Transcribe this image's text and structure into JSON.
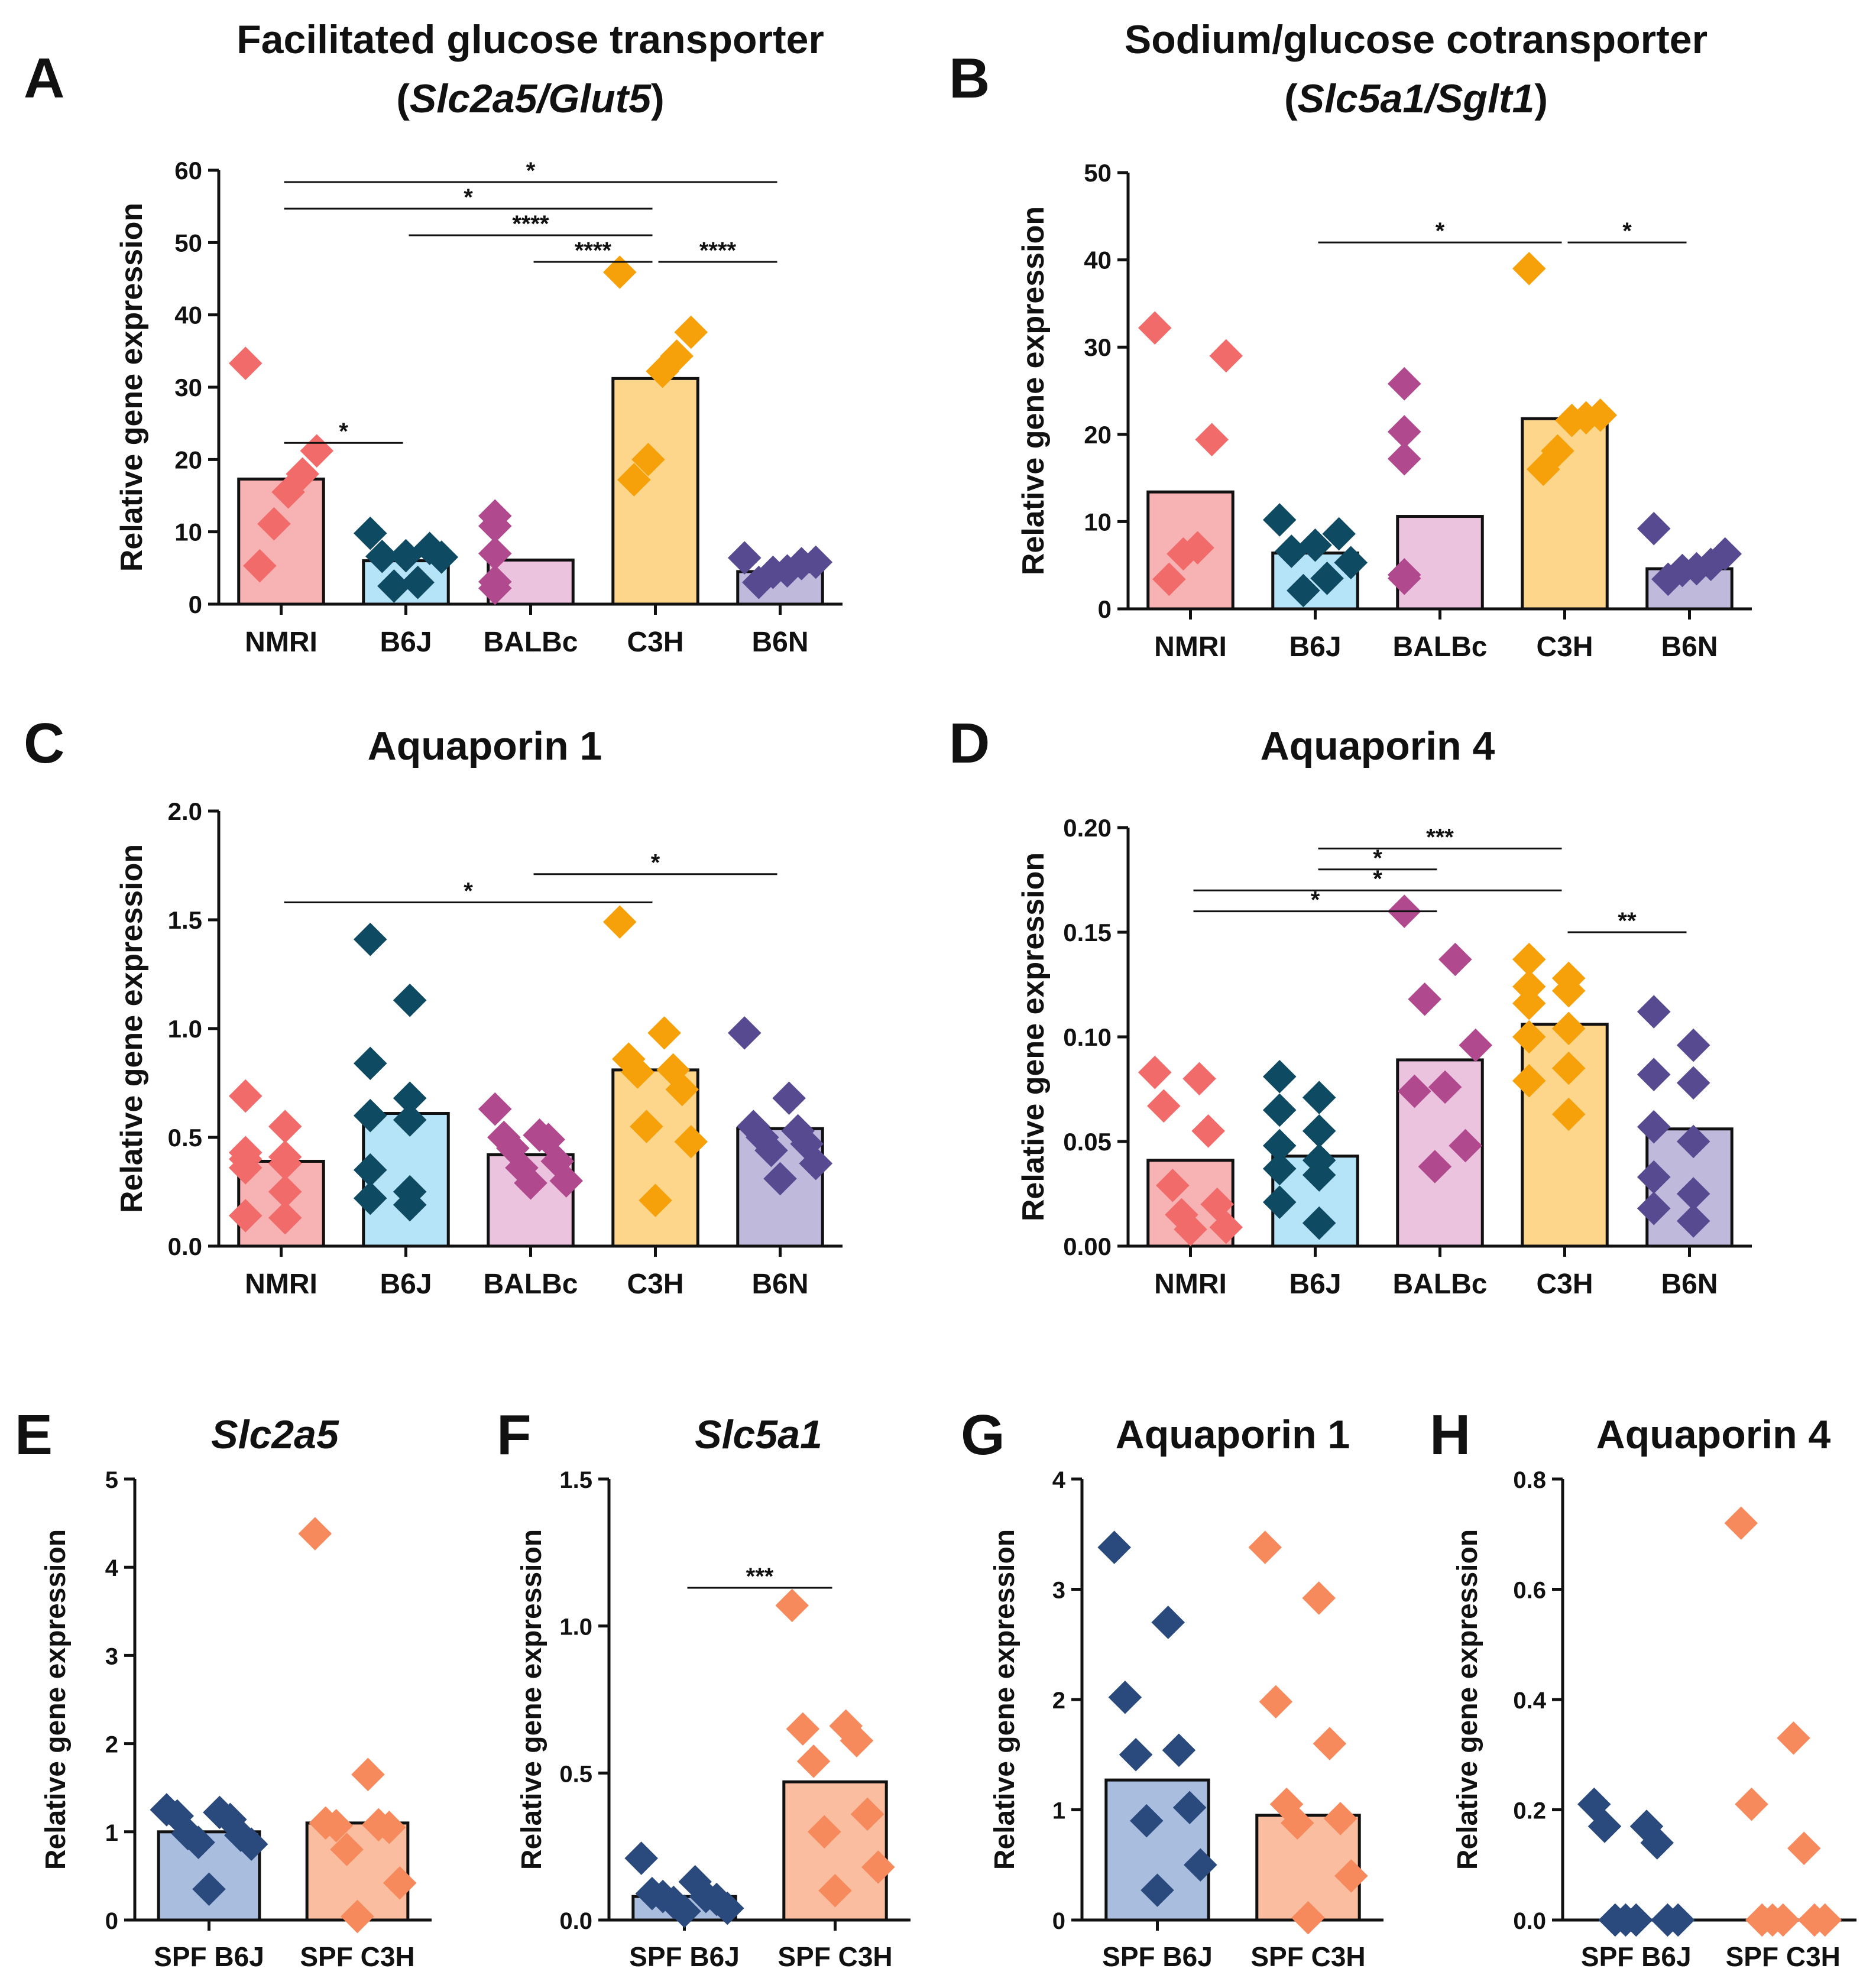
{
  "chart_data": [
    {
      "panel": "A",
      "type": "bar",
      "title": "Facilitated glucose transporter",
      "subtitle": "(Slc2a5/Glut5)",
      "ylabel": "Relative gene expression",
      "ylim": [
        0,
        60
      ],
      "yticks": [
        0,
        10,
        20,
        30,
        40,
        50,
        60
      ],
      "categories": [
        "NMRI",
        "B6J",
        "BALBc",
        "C3H",
        "B6N"
      ],
      "colors": [
        "#f7b3b3",
        "#b5e3f7",
        "#ecc3df",
        "#fdd68b",
        "#bfb9dc"
      ],
      "point_colors": [
        "#f26b6b",
        "#0f4a63",
        "#b0498e",
        "#f7a10a",
        "#584a91"
      ],
      "values": [
        17.3,
        6.0,
        6.1,
        31.2,
        4.5
      ],
      "points": [
        [
          33.3,
          21.2,
          18.0,
          15.5,
          11.1,
          5.3
        ],
        [
          9.8,
          7.7,
          6.7,
          6.6,
          6.5,
          3.0,
          2.5
        ],
        [
          12.2,
          10.8,
          7.0,
          3.1,
          2.2
        ],
        [
          45.9,
          37.6,
          34.3,
          32.2,
          20.0,
          17.2
        ],
        [
          6.4,
          5.8,
          5.6,
          4.6,
          4.4,
          3.0
        ]
      ],
      "significance": [
        {
          "from": 0,
          "to": 4,
          "label": "*"
        },
        {
          "from": 0,
          "to": 3,
          "label": "*"
        },
        {
          "from": 1,
          "to": 3,
          "label": "****"
        },
        {
          "from": 2,
          "to": 3,
          "label": "****"
        },
        {
          "from": 3,
          "to": 4,
          "label": "****"
        },
        {
          "from": 0,
          "to": 1,
          "label": "*"
        }
      ]
    },
    {
      "panel": "B",
      "type": "bar",
      "title": "Sodium/glucose cotransporter",
      "subtitle": "(Slc5a1/Sglt1)",
      "ylabel": "Relative gene expression",
      "ylim": [
        0,
        50
      ],
      "yticks": [
        0,
        10,
        20,
        30,
        40,
        50
      ],
      "categories": [
        "NMRI",
        "B6J",
        "BALBc",
        "C3H",
        "B6N"
      ],
      "colors": [
        "#f7b3b3",
        "#b5e3f7",
        "#ecc3df",
        "#fdd68b",
        "#bfb9dc"
      ],
      "point_colors": [
        "#f26b6b",
        "#0f4a63",
        "#b0498e",
        "#f7a10a",
        "#584a91"
      ],
      "values": [
        13.4,
        6.4,
        10.6,
        21.8,
        4.6
      ],
      "points": [
        [
          32.2,
          29.0,
          19.4,
          7.0,
          6.3,
          3.4
        ],
        [
          10.2,
          8.6,
          7.3,
          6.6,
          5.3,
          3.5,
          2.1
        ],
        [
          25.8,
          20.3,
          17.2,
          3.9,
          3.5
        ],
        [
          39.0,
          22.2,
          21.9,
          21.6,
          18.1,
          16.0
        ],
        [
          9.2,
          6.3,
          5.1,
          4.6,
          4.4,
          3.4
        ]
      ],
      "significance": [
        {
          "from": 1,
          "to": 3,
          "label": "*"
        },
        {
          "from": 3,
          "to": 4,
          "label": "*"
        }
      ]
    },
    {
      "panel": "C",
      "type": "bar",
      "title": "Aquaporin 1",
      "ylabel": "Relative gene expression",
      "ylim": [
        0,
        2.0
      ],
      "yticks": [
        0.0,
        0.5,
        1.0,
        1.5,
        2.0
      ],
      "decimals": 1,
      "categories": [
        "NMRI",
        "B6J",
        "BALBc",
        "C3H",
        "B6N"
      ],
      "colors": [
        "#f7b3b3",
        "#b5e3f7",
        "#ecc3df",
        "#fdd68b",
        "#bfb9dc"
      ],
      "point_colors": [
        "#f26b6b",
        "#0f4a63",
        "#b0498e",
        "#f7a10a",
        "#584a91"
      ],
      "values": [
        0.39,
        0.61,
        0.42,
        0.81,
        0.54
      ],
      "points": [
        [
          0.69,
          0.55,
          0.43,
          0.41,
          0.4,
          0.38,
          0.36,
          0.25,
          0.14,
          0.13
        ],
        [
          1.41,
          1.13,
          0.84,
          0.68,
          0.6,
          0.58,
          0.35,
          0.25,
          0.22,
          0.19
        ],
        [
          0.63,
          0.51,
          0.5,
          0.49,
          0.45,
          0.39,
          0.36,
          0.3,
          0.29
        ],
        [
          1.49,
          0.98,
          0.86,
          0.81,
          0.8,
          0.72,
          0.55,
          0.48,
          0.21
        ],
        [
          0.98,
          0.68,
          0.55,
          0.53,
          0.5,
          0.47,
          0.44,
          0.38,
          0.31
        ]
      ],
      "significance": [
        {
          "from": 0,
          "to": 3,
          "label": "*"
        },
        {
          "from": 2,
          "to": 4,
          "label": "*"
        }
      ]
    },
    {
      "panel": "D",
      "type": "bar",
      "title": "Aquaporin 4",
      "ylabel": "Relative gene expression",
      "ylim": [
        0,
        0.2
      ],
      "yticks": [
        0.0,
        0.05,
        0.1,
        0.15,
        0.2
      ],
      "decimals": 2,
      "categories": [
        "NMRI",
        "B6J",
        "BALBc",
        "C3H",
        "B6N"
      ],
      "colors": [
        "#f7b3b3",
        "#b5e3f7",
        "#ecc3df",
        "#fdd68b",
        "#bfb9dc"
      ],
      "point_colors": [
        "#f26b6b",
        "#0f4a63",
        "#b0498e",
        "#f7a10a",
        "#584a91"
      ],
      "values": [
        0.041,
        0.043,
        0.089,
        0.106,
        0.056
      ],
      "points": [
        [
          0.083,
          0.08,
          0.067,
          0.055,
          0.029,
          0.02,
          0.015,
          0.009,
          0.008
        ],
        [
          0.081,
          0.071,
          0.065,
          0.055,
          0.048,
          0.041,
          0.037,
          0.034,
          0.021,
          0.011
        ],
        [
          0.16,
          0.137,
          0.118,
          0.096,
          0.076,
          0.074,
          0.048,
          0.038
        ],
        [
          0.137,
          0.128,
          0.124,
          0.122,
          0.116,
          0.104,
          0.1,
          0.085,
          0.079,
          0.063
        ],
        [
          0.112,
          0.096,
          0.082,
          0.078,
          0.057,
          0.05,
          0.033,
          0.025,
          0.018,
          0.012
        ]
      ],
      "significance": [
        {
          "from": 1,
          "to": 3,
          "label": "***"
        },
        {
          "from": 1,
          "to": 2,
          "label": "*"
        },
        {
          "from": 0,
          "to": 3,
          "label": "*"
        },
        {
          "from": 0,
          "to": 2,
          "label": "*"
        },
        {
          "from": 3,
          "to": 4,
          "label": "**"
        }
      ]
    },
    {
      "panel": "E",
      "type": "bar",
      "title": "Slc2a5",
      "title_italic": true,
      "ylabel": "Relative gene expression",
      "ylim": [
        0,
        5
      ],
      "yticks": [
        0,
        1,
        2,
        3,
        4,
        5
      ],
      "categories": [
        "SPF B6J",
        "SPF C3H"
      ],
      "colors": [
        "#a9bddf",
        "#fbbd9f"
      ],
      "point_colors": [
        "#2a4a7e",
        "#f68a5c"
      ],
      "values": [
        1.0,
        1.1
      ],
      "points": [
        [
          1.25,
          1.22,
          1.18,
          1.14,
          0.98,
          0.96,
          0.88,
          0.86,
          0.35
        ],
        [
          4.38,
          1.65,
          1.1,
          1.08,
          1.07,
          1.05,
          0.8,
          0.42,
          0.04
        ]
      ],
      "significance": []
    },
    {
      "panel": "F",
      "type": "bar",
      "title": "Slc5a1",
      "title_italic": true,
      "ylabel": "Relative gene expression",
      "ylim": [
        0,
        1.5
      ],
      "yticks": [
        0.0,
        0.5,
        1.0,
        1.5
      ],
      "decimals": 1,
      "categories": [
        "SPF B6J",
        "SPF C3H"
      ],
      "colors": [
        "#a9bddf",
        "#fbbd9f"
      ],
      "point_colors": [
        "#2a4a7e",
        "#f68a5c"
      ],
      "values": [
        0.08,
        0.47
      ],
      "points": [
        [
          0.21,
          0.13,
          0.09,
          0.08,
          0.08,
          0.07,
          0.06,
          0.04,
          0.03
        ],
        [
          1.07,
          0.66,
          0.65,
          0.61,
          0.54,
          0.36,
          0.3,
          0.18,
          0.1
        ]
      ],
      "significance": [
        {
          "from": 0,
          "to": 1,
          "label": "***"
        }
      ]
    },
    {
      "panel": "G",
      "type": "bar",
      "title": "Aquaporin 1",
      "ylabel": "Relative gene expression",
      "ylim": [
        0,
        4
      ],
      "yticks": [
        0,
        1,
        2,
        3,
        4
      ],
      "categories": [
        "SPF B6J",
        "SPF C3H"
      ],
      "colors": [
        "#a9bddf",
        "#fbbd9f"
      ],
      "point_colors": [
        "#2a4a7e",
        "#f68a5c"
      ],
      "values": [
        1.27,
        0.95
      ],
      "points": [
        [
          3.38,
          2.7,
          2.02,
          1.54,
          1.5,
          1.02,
          0.9,
          0.5,
          0.27
        ],
        [
          3.38,
          2.92,
          1.98,
          1.6,
          1.05,
          0.92,
          0.88,
          0.4,
          0.02
        ]
      ],
      "significance": []
    },
    {
      "panel": "H",
      "type": "scatter",
      "title": "Aquaporin 4",
      "ylabel": "Relative gene expression",
      "ylim": [
        0,
        0.8
      ],
      "yticks": [
        0.0,
        0.2,
        0.4,
        0.6,
        0.8
      ],
      "decimals": 1,
      "categories": [
        "SPF B6J",
        "SPF C3H"
      ],
      "colors": [
        "none",
        "none"
      ],
      "point_colors": [
        "#2a4a7e",
        "#f68a5c"
      ],
      "values": [],
      "points": [
        [
          0.21,
          0.17,
          0.17,
          0.14,
          0.0,
          0.0,
          0.0,
          0.0,
          0.0
        ],
        [
          0.72,
          0.33,
          0.21,
          0.13,
          0.0,
          0.0,
          0.0,
          0.0,
          0.0
        ]
      ],
      "significance": []
    }
  ]
}
